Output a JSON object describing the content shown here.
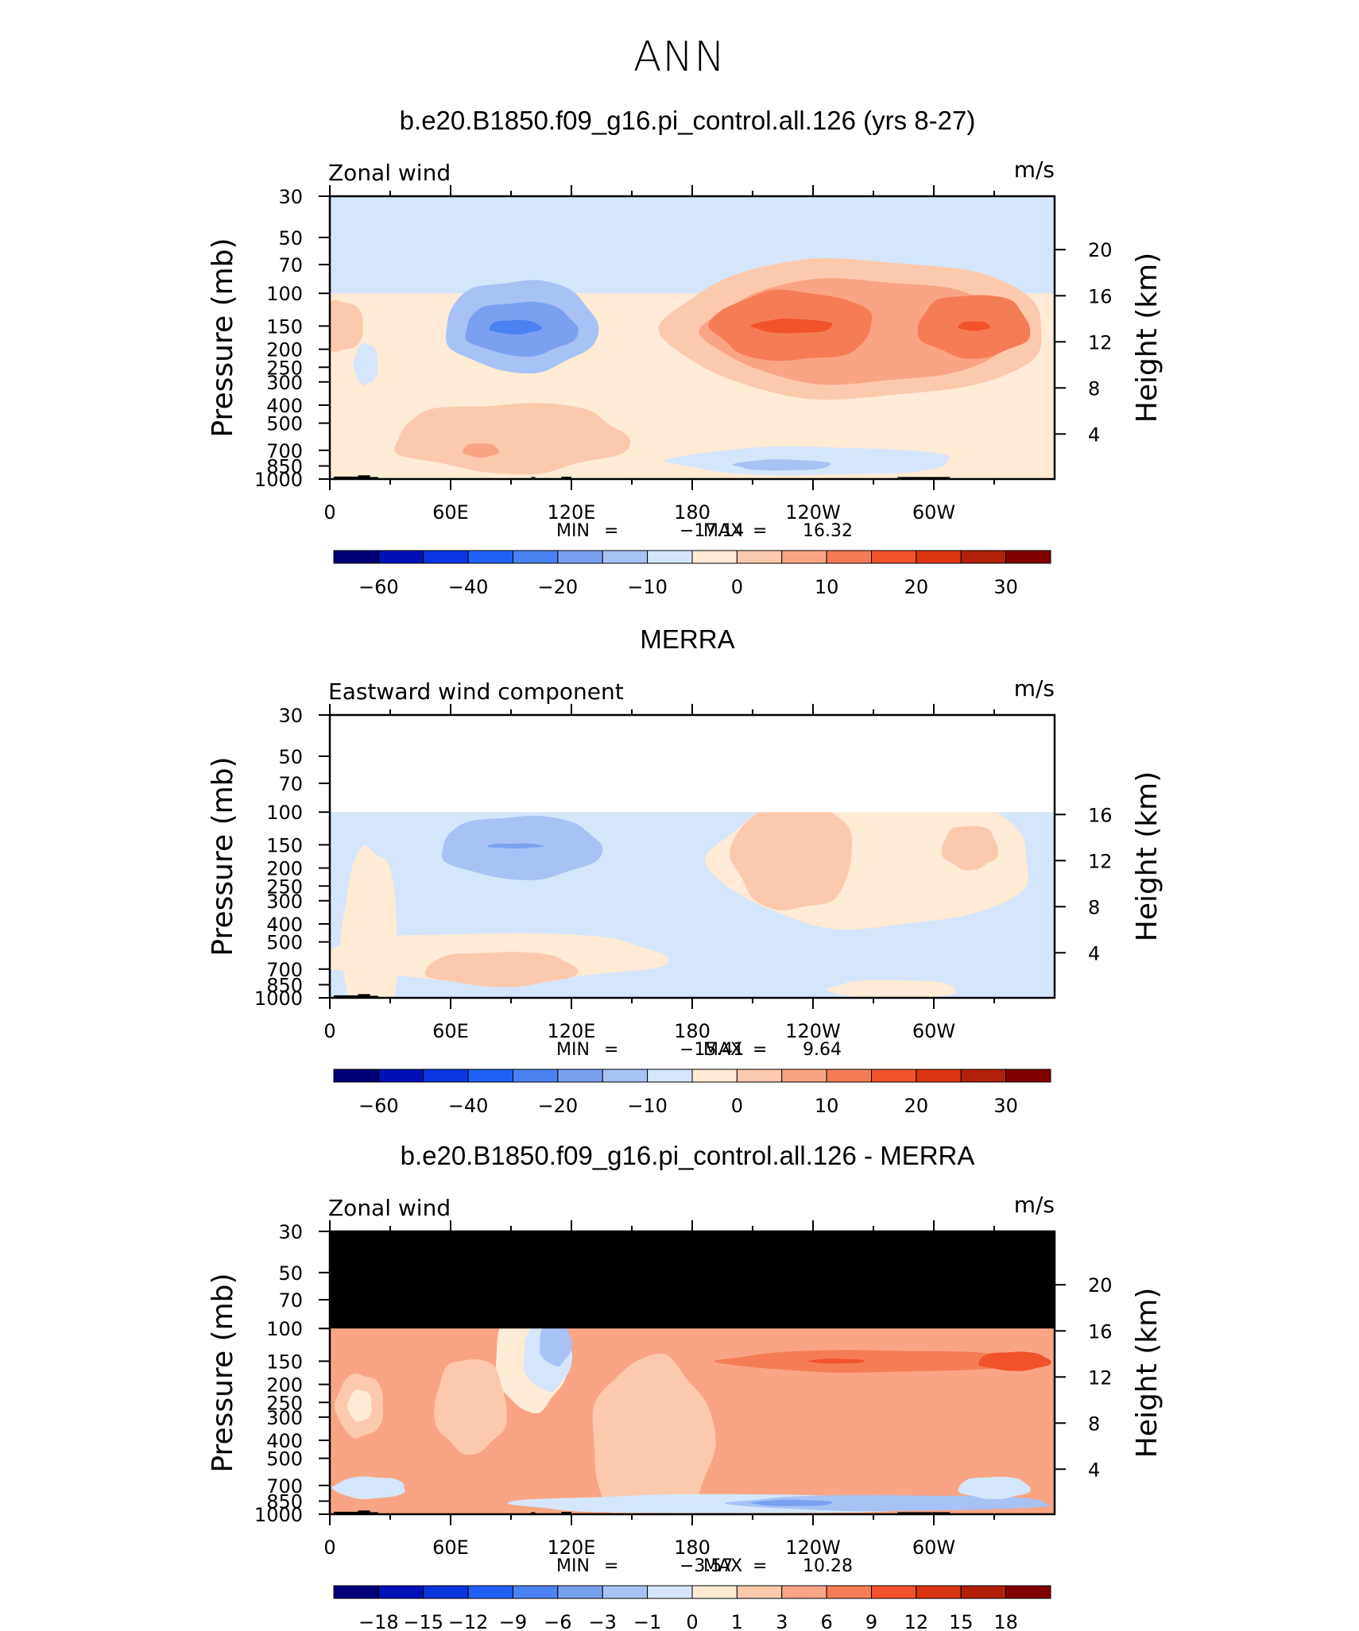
{
  "main_title": "ANN",
  "colors": {
    "scale": [
      "#00007a",
      "#0011b8",
      "#0a35e0",
      "#2060f5",
      "#4a82f2",
      "#7aa0f0",
      "#a8c2f6",
      "#d5e6fb",
      "#ffebd6",
      "#fdc9ad",
      "#f9a584",
      "#f57d55",
      "#f2522a",
      "#dc3512",
      "#b02008",
      "#820000"
    ],
    "mask": "#000000",
    "frame": "#000000"
  },
  "chart_data": [
    {
      "type": "heatmap",
      "title": "b.e20.B1850.f09_g16.pi_control.all.126 (yrs 8-27)",
      "left_label": "Zonal wind",
      "units": "m/s",
      "ylabel": "Pressure (mb)",
      "y2label": "Height (km)",
      "x_ticks": [
        "0",
        "60E",
        "120E",
        "180",
        "120W",
        "60W"
      ],
      "y_ticks": [
        "30",
        "50",
        "70",
        "100",
        "150",
        "200",
        "250",
        "300",
        "400",
        "500",
        "700",
        "850",
        "1000"
      ],
      "y2_ticks": [
        "20",
        "16",
        "12",
        "8",
        "4"
      ],
      "stats": {
        "min_label": "MIN",
        "min": "−17.14",
        "max_label": "MAX",
        "max": "16.32"
      },
      "colorbar_ticks": [
        "−60",
        "−40",
        "−20",
        "−10",
        "0",
        "10",
        "20",
        "30"
      ],
      "top_data_pressure": 30
    },
    {
      "type": "heatmap",
      "title": "MERRA",
      "left_label": "Eastward wind component",
      "units": "m/s",
      "ylabel": "Pressure (mb)",
      "y2label": "Height (km)",
      "x_ticks": [
        "0",
        "60E",
        "120E",
        "180",
        "120W",
        "60W"
      ],
      "y_ticks": [
        "30",
        "50",
        "70",
        "100",
        "150",
        "200",
        "250",
        "300",
        "400",
        "500",
        "700",
        "850",
        "1000"
      ],
      "y2_ticks": [
        "16",
        "12",
        "8",
        "4"
      ],
      "stats": {
        "min_label": "MIN",
        "min": "−15.41",
        "max_label": "MAX",
        "max": "9.64"
      },
      "colorbar_ticks": [
        "−60",
        "−40",
        "−20",
        "−10",
        "0",
        "10",
        "20",
        "30"
      ],
      "top_data_pressure": 100
    },
    {
      "type": "heatmap",
      "title": "b.e20.B1850.f09_g16.pi_control.all.126 - MERRA",
      "left_label": "Zonal wind",
      "units": "m/s",
      "ylabel": "Pressure (mb)",
      "y2label": "Height (km)",
      "x_ticks": [
        "0",
        "60E",
        "120E",
        "180",
        "120W",
        "60W"
      ],
      "y_ticks": [
        "30",
        "50",
        "70",
        "100",
        "150",
        "200",
        "250",
        "300",
        "400",
        "500",
        "700",
        "850",
        "1000"
      ],
      "y2_ticks": [
        "20",
        "16",
        "12",
        "8",
        "4"
      ],
      "stats": {
        "min_label": "MIN",
        "min": "−3.57",
        "max_label": "MAX",
        "max": "10.28"
      },
      "colorbar_ticks": [
        "−18",
        "−15",
        "−12",
        "−9",
        "−6",
        "−3",
        "−1",
        "0",
        "1",
        "3",
        "6",
        "9",
        "12",
        "15",
        "18"
      ],
      "top_data_pressure": 100
    }
  ]
}
